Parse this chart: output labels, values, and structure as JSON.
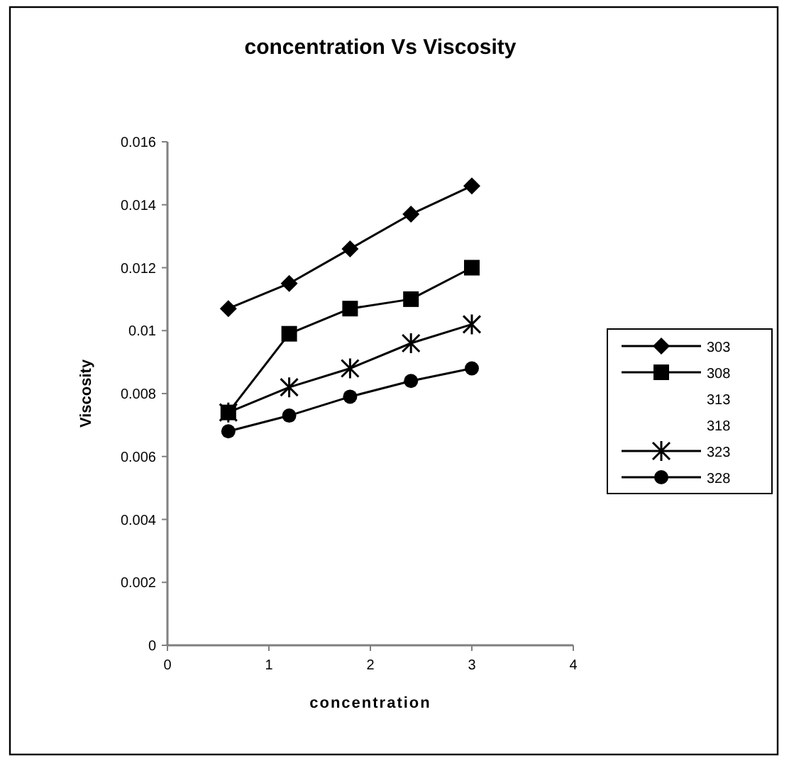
{
  "chart_data": {
    "type": "line",
    "title": "concentration Vs Viscosity",
    "xlabel": "concentration",
    "ylabel": "Viscosity",
    "x": [
      0.6,
      1.2,
      1.8,
      2.4,
      3.0
    ],
    "xlim": [
      0,
      4
    ],
    "xticks": [
      0,
      1,
      2,
      3,
      4
    ],
    "ylim": [
      0,
      0.016
    ],
    "yticks": [
      0,
      0.002,
      0.004,
      0.006,
      0.008,
      0.01,
      0.012,
      0.014,
      0.016
    ],
    "legend": "right",
    "grid": false,
    "series": [
      {
        "name": "303",
        "color": "#000000",
        "marker": "diamond",
        "values": [
          0.0107,
          0.0115,
          0.0126,
          0.0137,
          0.0146
        ]
      },
      {
        "name": "308",
        "color": "#000000",
        "marker": "square",
        "values": [
          0.0074,
          0.0099,
          0.0107,
          0.011,
          0.012
        ]
      },
      {
        "name": "313",
        "values": [
          null,
          null,
          null,
          null,
          null
        ]
      },
      {
        "name": "318",
        "values": [
          null,
          null,
          null,
          null,
          null
        ]
      },
      {
        "name": "323",
        "color": "#000000",
        "marker": "cross",
        "values": [
          0.0074,
          0.0082,
          0.0088,
          0.0096,
          0.0102
        ]
      },
      {
        "name": "328",
        "color": "#000000",
        "marker": "circle",
        "values": [
          0.0068,
          0.0073,
          0.0079,
          0.0084,
          0.0088
        ]
      }
    ]
  }
}
